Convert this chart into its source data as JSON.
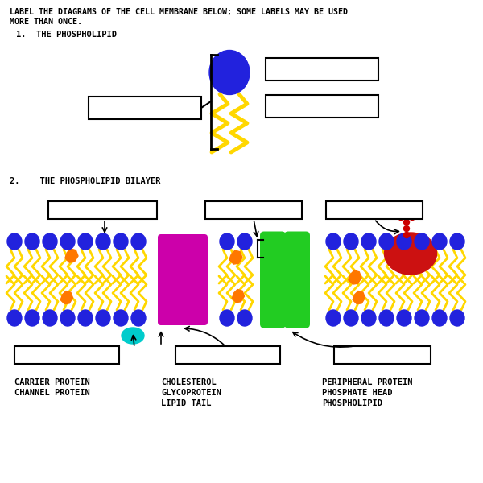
{
  "bg_color": "#ffffff",
  "blue_head": "#2222dd",
  "yellow_tail": "#FFD700",
  "magenta_protein": "#CC00AA",
  "green_protein": "#22CC22",
  "red_protein": "#CC1111",
  "orange_cholesterol": "#FF7700",
  "cyan_channel": "#00CCCC",
  "red_dots": "#CC0000",
  "font_family": "monospace",
  "title_line1": "LABEL THE DIAGRAMS OF THE CELL MEMBRANE BELOW; SOME LABELS MAY BE USED",
  "title_line2": "MORE THAN ONCE.",
  "section1": "1.  THE PHOSPHOLIPID",
  "section2": "2.    THE PHOSPHOLIPID BILAYER",
  "bottom_labels_left": [
    "CARRIER PROTEIN",
    "CHANNEL PROTEIN"
  ],
  "bottom_labels_mid": [
    "CHOLESTEROL",
    "GLYCOPROTEIN",
    "LIPID TAIL"
  ],
  "bottom_labels_right": [
    "PERIPHERAL PROTEIN",
    "PHOSPHATE HEAD",
    "PHOSPHOLIPID"
  ]
}
